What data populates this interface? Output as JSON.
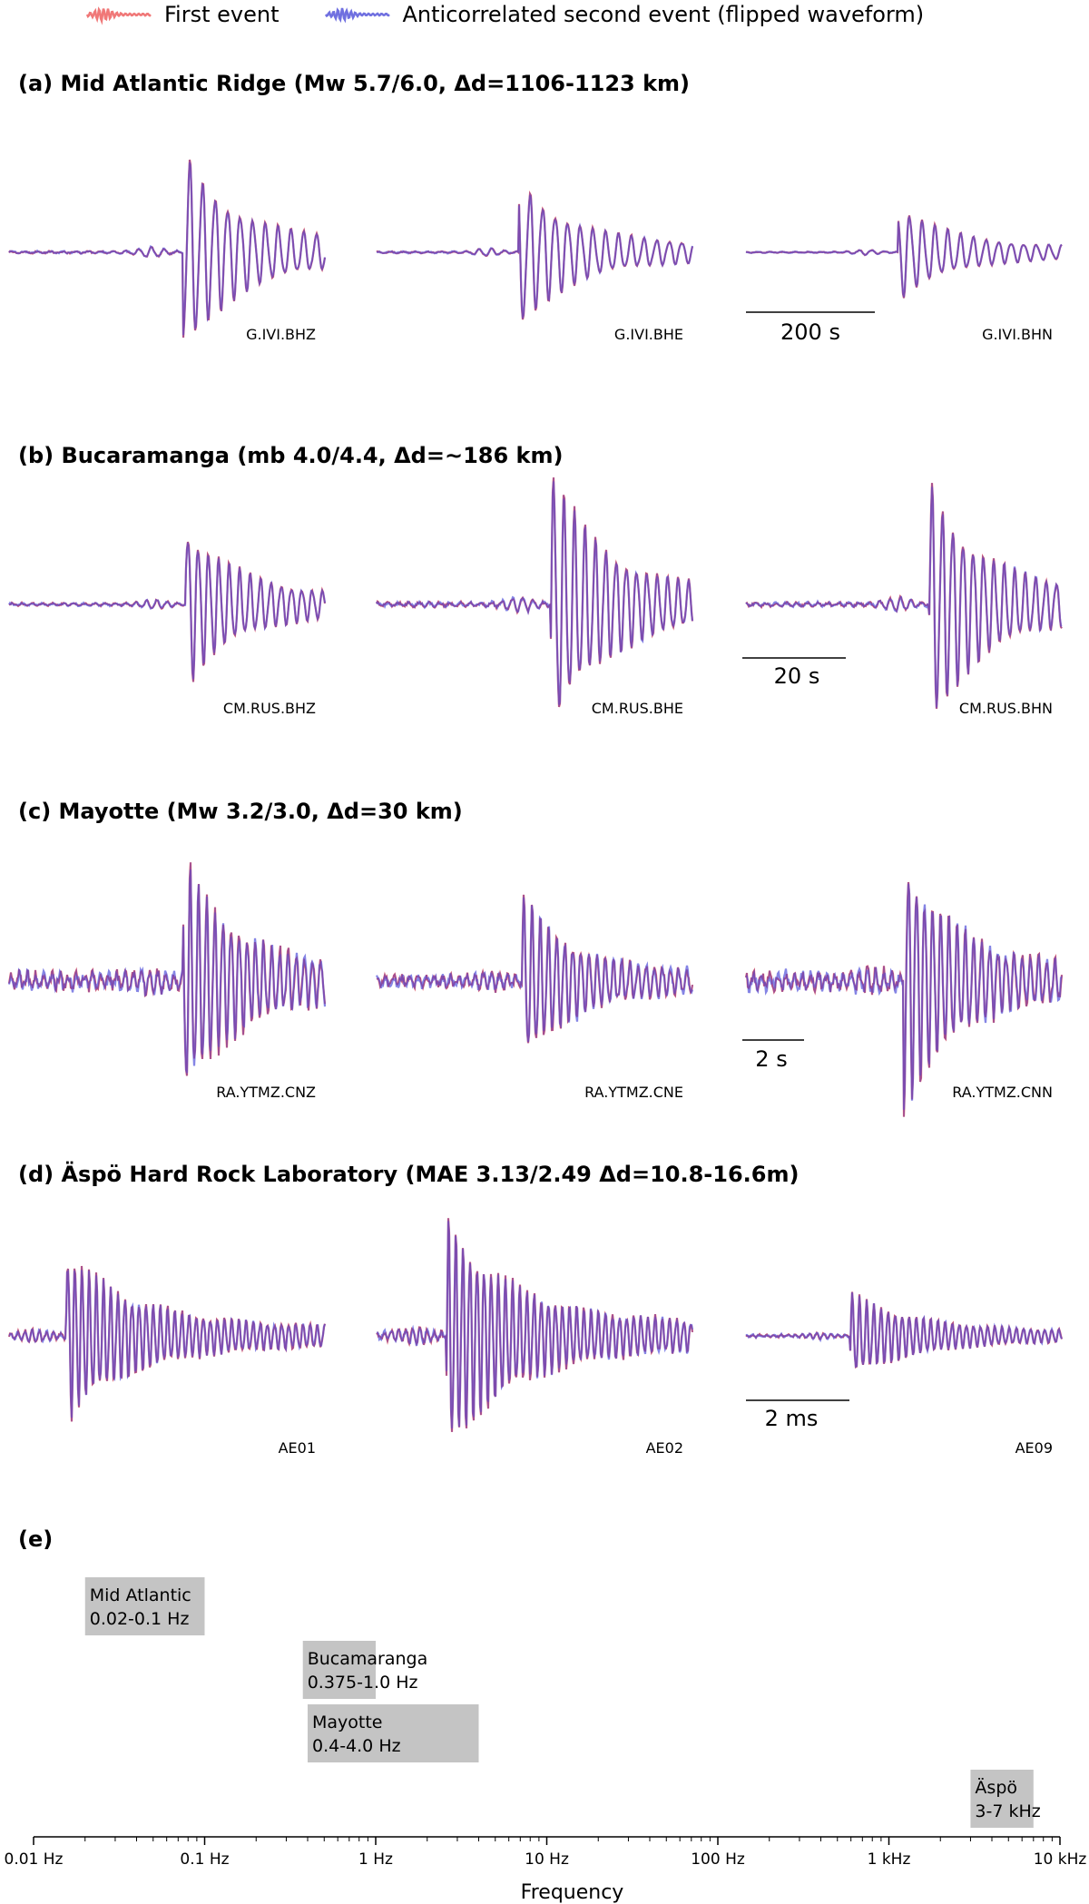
{
  "legend": {
    "first": "First event",
    "second": "Anticorrelated second event (flipped waveform)"
  },
  "colors": {
    "first": "#f07878",
    "second": "#7070e0",
    "overlap": "#7a3a9e",
    "band": "#c4c4c4"
  },
  "panels": [
    {
      "title": "(a) Mid Atlantic Ridge  (Mw 5.7/6.0,  Δd=1106-1123 km)",
      "scale_bar": "200 s",
      "stations": [
        "G.IVI.BHZ",
        "G.IVI.BHE",
        "G.IVI.BHN"
      ]
    },
    {
      "title": "(b) Bucaramanga (mb 4.0/4.4, Δd=~186 km)",
      "scale_bar": "20 s",
      "stations": [
        "CM.RUS.BHZ",
        "CM.RUS.BHE",
        "CM.RUS.BHN"
      ]
    },
    {
      "title": "(c) Mayotte (Mw 3.2/3.0, Δd=30 km)",
      "scale_bar": "2 s",
      "stations": [
        "RA.YTMZ.CNZ",
        "RA.YTMZ.CNE",
        "RA.YTMZ.CNN"
      ]
    },
    {
      "title": "(d) Äspö Hard Rock Laboratory (MAE 3.13/2.49  Δd=10.8-16.6m)",
      "scale_bar": "2 ms",
      "stations": [
        "AE01",
        "AE02",
        "AE09"
      ]
    }
  ],
  "chart_data": {
    "type": "bar",
    "title": "(e)",
    "xlabel": "Frequency",
    "xscale": "log",
    "xlim": [
      0.01,
      10000
    ],
    "ticks": [
      {
        "value": 0.01,
        "label": "0.01 Hz"
      },
      {
        "value": 0.1,
        "label": "0.1 Hz"
      },
      {
        "value": 1,
        "label": "1 Hz"
      },
      {
        "value": 10,
        "label": "10 Hz"
      },
      {
        "value": 100,
        "label": "100 Hz"
      },
      {
        "value": 1000,
        "label": "1 kHz"
      },
      {
        "value": 10000,
        "label": "10 kHz"
      }
    ],
    "bands": [
      {
        "name": "Mid Atlantic",
        "range_label": "0.02-0.1 Hz",
        "low": 0.02,
        "high": 0.1,
        "row": 0
      },
      {
        "name": "Bucamaranga",
        "range_label": "0.375-1.0 Hz",
        "low": 0.375,
        "high": 1.0,
        "row": 1
      },
      {
        "name": "Mayotte",
        "range_label": "0.4-4.0 Hz",
        "low": 0.4,
        "high": 4.0,
        "row": 2
      },
      {
        "name": "Äspö",
        "range_label": "3-7 kHz",
        "low": 3000,
        "high": 7000,
        "row": 3
      }
    ]
  }
}
